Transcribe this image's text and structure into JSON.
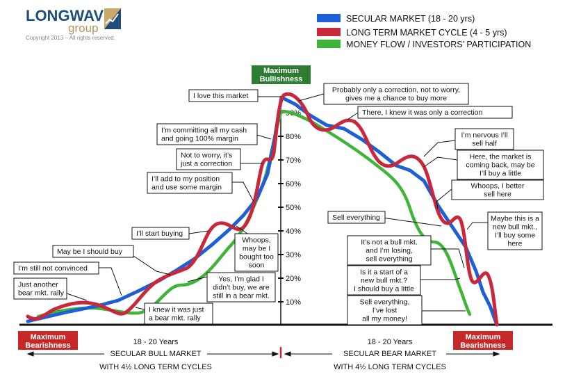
{
  "logo": {
    "line1": "LONGWAVE",
    "line2": "group",
    "copyright": "Copyright 2013 – All rights reserved."
  },
  "legend": [
    {
      "label": "SECULAR MARKET (18 - 20 yrs)",
      "color": "#1f5fd6"
    },
    {
      "label": "LONG TERM MARKET CYCLE (4 - 5 yrs)",
      "color": "#c8283a"
    },
    {
      "label": "MONEY FLOW / INVESTORS’ PARTICIPATION",
      "color": "#3fb537"
    }
  ],
  "colors": {
    "secular": "#1f5fd6",
    "cycle": "#c8283a",
    "moneyflow": "#3fb537",
    "max_bull": "#2e7d32",
    "max_bear": "#c62828"
  },
  "axis_ticks": [
    "10%",
    "20%",
    "30%",
    "40%",
    "50%",
    "60%",
    "70%",
    "80%",
    "90%"
  ],
  "max_bull": [
    "Maximum",
    "Bullishness"
  ],
  "max_bear_left": [
    "Maximum",
    "Bearishness"
  ],
  "max_bear_right": [
    "Maximum",
    "Bearishness"
  ],
  "bottom": {
    "left_years": "18 - 20 Years",
    "left_title": "SECULAR BULL MARKET",
    "left_sub": "WITH 4½ LONG TERM CYCLES",
    "right_years": "18 - 20 Years",
    "right_title": "SECULAR BEAR MARKET",
    "right_sub": "WITH 4½ LONG TERM CYCLES"
  },
  "callouts": [
    {
      "lines": [
        "Just another",
        "bear mkt. rally"
      ]
    },
    {
      "lines": [
        "I’m still not convinced"
      ]
    },
    {
      "lines": [
        "May be I should buy"
      ]
    },
    {
      "lines": [
        "I’ll start buying"
      ]
    },
    {
      "lines": [
        "I’ll add to my position",
        "and use some margin"
      ]
    },
    {
      "lines": [
        "Not to worry, it’s",
        "just a correction"
      ]
    },
    {
      "lines": [
        "I’m committing all my cash",
        "and going 100% margin"
      ]
    },
    {
      "lines": [
        "I love this market"
      ]
    },
    {
      "lines": [
        "I knew it was just",
        "a bear mkt. rally"
      ]
    },
    {
      "lines": [
        "Yes, I’m glad I",
        "didn’t buy, we are",
        "still in a bear mkt."
      ]
    },
    {
      "lines": [
        "Whoops,",
        "may be I",
        "bought too",
        "soon"
      ]
    },
    {
      "lines": [
        "Probably only a correction, not to worry,",
        "gives me a chance to buy more"
      ]
    },
    {
      "lines": [
        "There, I knew it was only a correction"
      ]
    },
    {
      "lines": [
        "I’m nervous I’ll",
        "sell half"
      ]
    },
    {
      "lines": [
        "Here, the market is",
        "coming back, may be",
        "I’ll buy a little"
      ]
    },
    {
      "lines": [
        "Whoops, I better",
        "sell here"
      ]
    },
    {
      "lines": [
        "Sell everything"
      ]
    },
    {
      "lines": [
        "Maybe this is a",
        "new bull mkt.,",
        "I’ll buy some",
        "here"
      ]
    },
    {
      "lines": [
        "It’s not a bull mkt.",
        "and I’m losing,",
        "sell everything"
      ]
    },
    {
      "lines": [
        "Is it a start of a",
        "new bull mkt.?",
        "I should buy a little"
      ]
    },
    {
      "lines": [
        "Sell everything,",
        "I’ve lost",
        "all my money!"
      ]
    }
  ]
}
